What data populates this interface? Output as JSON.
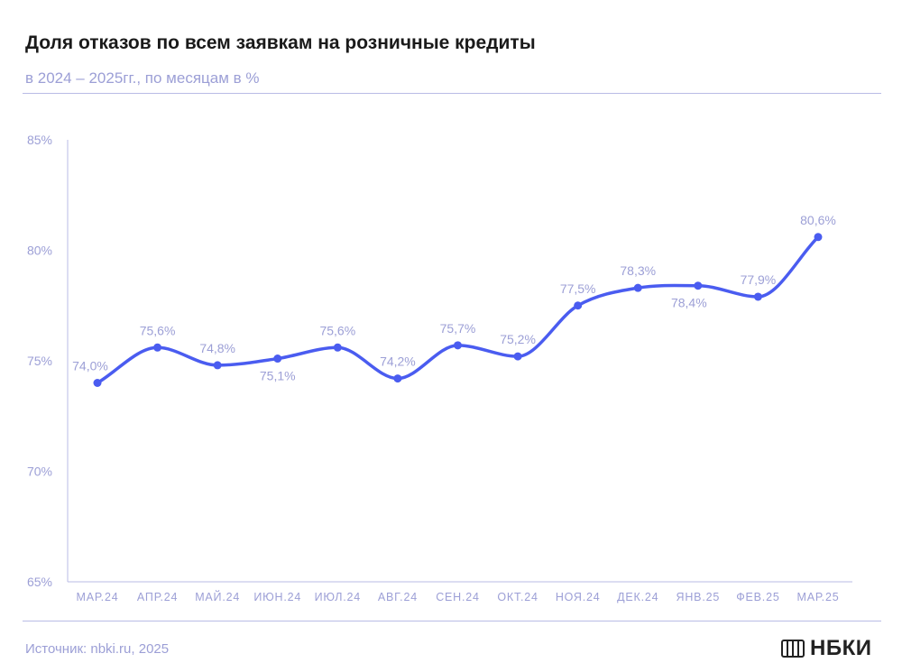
{
  "header": {
    "title": "Доля отказов по всем заявкам на розничные кредиты",
    "subtitle": "в 2024 – 2025гг., по месяцам в %"
  },
  "footer": {
    "source": "Источник: nbki.ru, 2025",
    "logo_text": "НБКИ"
  },
  "colors": {
    "line": "#4a5cf0",
    "axis_text": "#9c9fd6",
    "rule": "#b9bbe6"
  },
  "chart_data": {
    "type": "line",
    "title": "Доля отказов по всем заявкам на розничные кредиты",
    "subtitle": "в 2024 – 2025гг., по месяцам в %",
    "categories": [
      "МАР.24",
      "АПР.24",
      "МАЙ.24",
      "ИЮН.24",
      "ИЮЛ.24",
      "АВГ.24",
      "СЕН.24",
      "ОКТ.24",
      "НОЯ.24",
      "ДЕК.24",
      "ЯНВ.25",
      "ФЕВ.25",
      "МАР.25"
    ],
    "values": [
      74.0,
      75.6,
      74.8,
      75.1,
      75.6,
      74.2,
      75.7,
      75.2,
      77.5,
      78.3,
      78.4,
      77.9,
      80.6
    ],
    "data_labels": [
      "74,0%",
      "75,6%",
      "74,8%",
      "75,1%",
      "75,6%",
      "74,2%",
      "75,7%",
      "75,2%",
      "77,5%",
      "78,3%",
      "78,4%",
      "77,9%",
      "80,6%"
    ],
    "y_ticks": [
      65,
      70,
      75,
      80,
      85
    ],
    "y_tick_labels": [
      "65%",
      "70%",
      "75%",
      "80%",
      "85%"
    ],
    "ylim": [
      65,
      85
    ],
    "grid": false,
    "legend": "none"
  }
}
